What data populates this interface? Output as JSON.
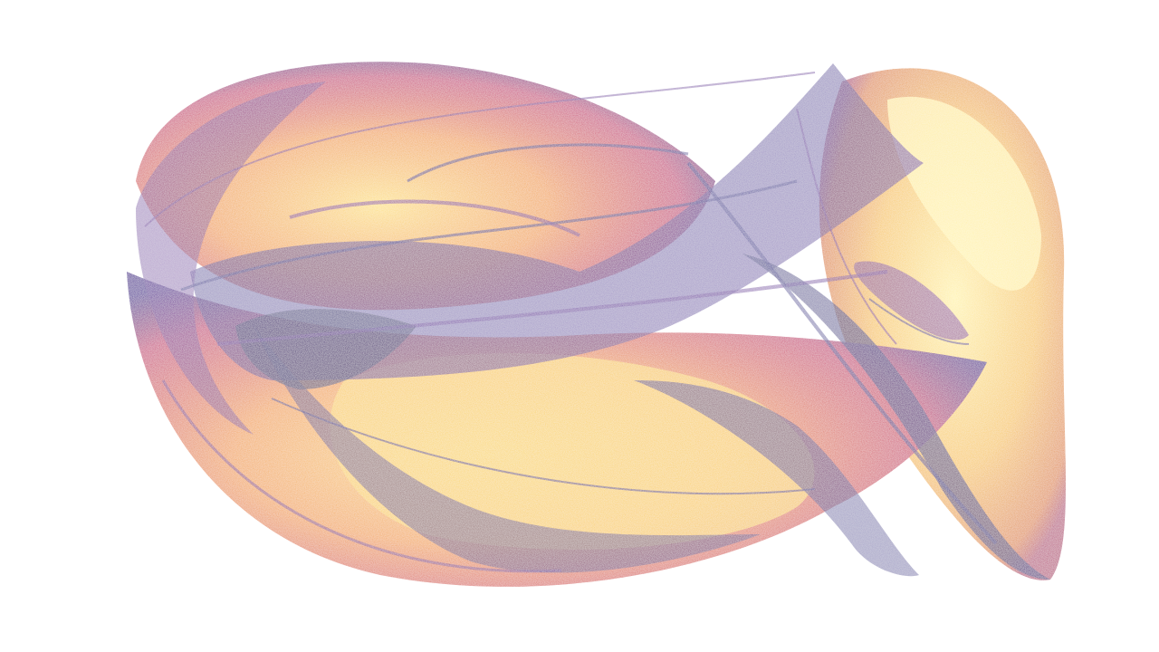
{
  "artwork": {
    "subject": "strange-attractor",
    "background_color": "#ffffff",
    "palette": [
      "#fff4b0",
      "#fde07a",
      "#f6b84a",
      "#ef8a4a",
      "#d8586a",
      "#a52e8a",
      "#6a1a9e",
      "#2a0f8f",
      "#14086a"
    ]
  }
}
